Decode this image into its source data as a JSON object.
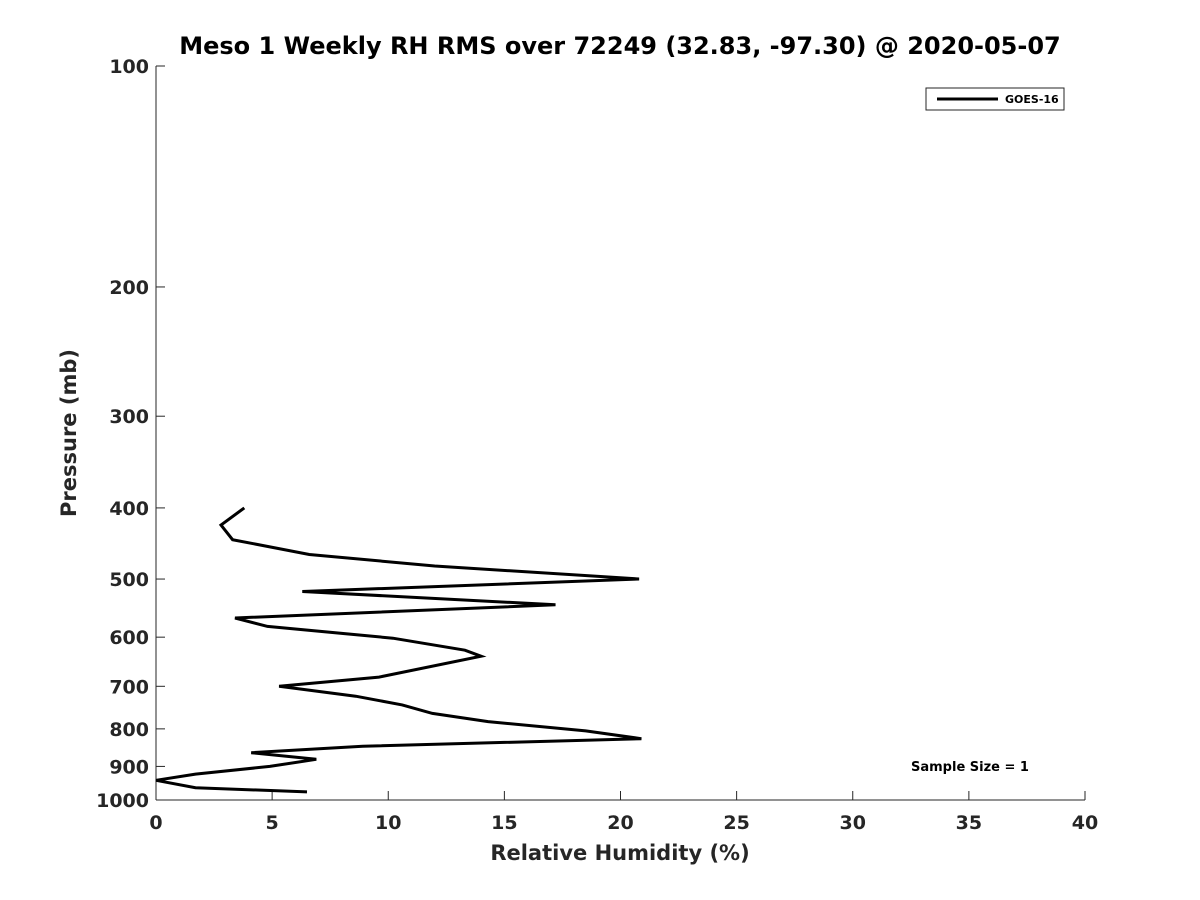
{
  "chart_data": {
    "type": "line",
    "title": "Meso 1 Weekly RH RMS over 72249 (32.83, -97.30) @ 2020-05-07",
    "xlabel": "Relative Humidity (%)",
    "ylabel": "Pressure (mb)",
    "xlim": [
      0,
      40
    ],
    "ylim": [
      1000,
      100
    ],
    "yscale": "log",
    "xticks": [
      0,
      5,
      10,
      15,
      20,
      25,
      30,
      35,
      40
    ],
    "yticks": [
      100,
      200,
      300,
      400,
      500,
      600,
      700,
      800,
      900,
      1000
    ],
    "grid": false,
    "legend_position": "top-right",
    "annotation": "Sample Size = 1",
    "series": [
      {
        "name": "GOES-16",
        "color": "#000000",
        "points": [
          {
            "rh": 6.5,
            "p": 975
          },
          {
            "rh": 1.7,
            "p": 962
          },
          {
            "rh": 0.0,
            "p": 940
          },
          {
            "rh": 1.7,
            "p": 922
          },
          {
            "rh": 4.9,
            "p": 900
          },
          {
            "rh": 6.9,
            "p": 880
          },
          {
            "rh": 4.1,
            "p": 862
          },
          {
            "rh": 8.9,
            "p": 845
          },
          {
            "rh": 20.9,
            "p": 825
          },
          {
            "rh": 18.5,
            "p": 805
          },
          {
            "rh": 14.3,
            "p": 782
          },
          {
            "rh": 11.9,
            "p": 762
          },
          {
            "rh": 10.6,
            "p": 742
          },
          {
            "rh": 8.6,
            "p": 722
          },
          {
            "rh": 5.3,
            "p": 700
          },
          {
            "rh": 9.6,
            "p": 680
          },
          {
            "rh": 14.0,
            "p": 637
          },
          {
            "rh": 13.3,
            "p": 625
          },
          {
            "rh": 10.2,
            "p": 602
          },
          {
            "rh": 4.8,
            "p": 580
          },
          {
            "rh": 3.4,
            "p": 565
          },
          {
            "rh": 17.2,
            "p": 542
          },
          {
            "rh": 6.3,
            "p": 520
          },
          {
            "rh": 20.8,
            "p": 500
          },
          {
            "rh": 12.0,
            "p": 480
          },
          {
            "rh": 6.6,
            "p": 463
          },
          {
            "rh": 3.3,
            "p": 442
          },
          {
            "rh": 2.8,
            "p": 422
          },
          {
            "rh": 3.8,
            "p": 400
          }
        ]
      }
    ]
  }
}
